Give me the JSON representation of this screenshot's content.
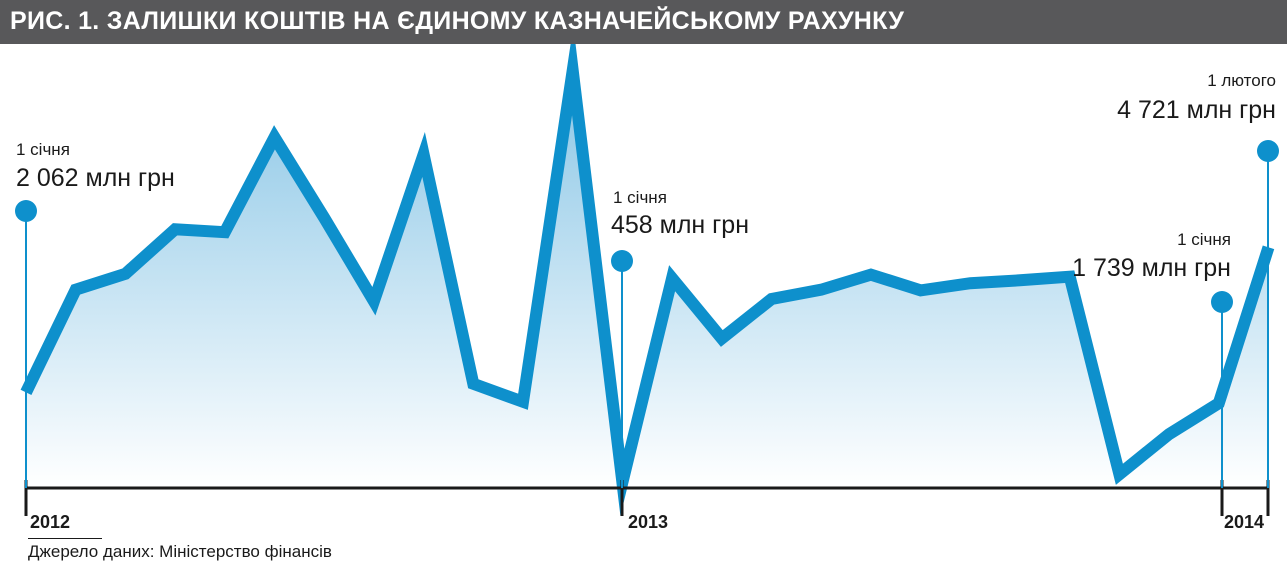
{
  "title": "РИС. 1. ЗАЛИШКИ КОШТІВ НА ЄДИНОМУ КАЗНАЧЕЙСЬКОМУ РАХУНКУ",
  "source": "Джерело даних: Міністерство фінансів",
  "colors": {
    "line": "#0e90cc",
    "area_top": "#8ac6e6",
    "area_bottom": "#ffffff",
    "title_bg": "#58585a"
  },
  "chart_data": {
    "type": "area",
    "x": [
      "2012-01",
      "2012-02",
      "2012-03",
      "2012-04",
      "2012-05",
      "2012-06",
      "2012-07",
      "2012-08",
      "2012-09",
      "2012-10",
      "2012-11",
      "2012-12",
      "2013-01",
      "2013-02",
      "2013-03",
      "2013-04",
      "2013-05",
      "2013-06",
      "2013-07",
      "2013-08",
      "2013-09",
      "2013-10",
      "2013-11",
      "2013-12",
      "2014-01",
      "2014-02"
    ],
    "values": [
      1130,
      2560,
      2780,
      3400,
      3360,
      4680,
      3560,
      2400,
      4440,
      1250,
      1000,
      5610,
      -120,
      2720,
      1880,
      2430,
      2560,
      2770,
      2550,
      2650,
      2690,
      2740,
      -10,
      550,
      980,
      3150
    ],
    "year_ticks": [
      "2012",
      "2013",
      "2014"
    ],
    "annotations": [
      {
        "date": "1 січня",
        "value": "2 062 млн грн"
      },
      {
        "date": "1 січня",
        "value": "458 млн грн"
      },
      {
        "date": "1 січня",
        "value": "1 739 млн грн"
      },
      {
        "date": "1 лютого",
        "value": "4 721 млн грн"
      }
    ]
  }
}
